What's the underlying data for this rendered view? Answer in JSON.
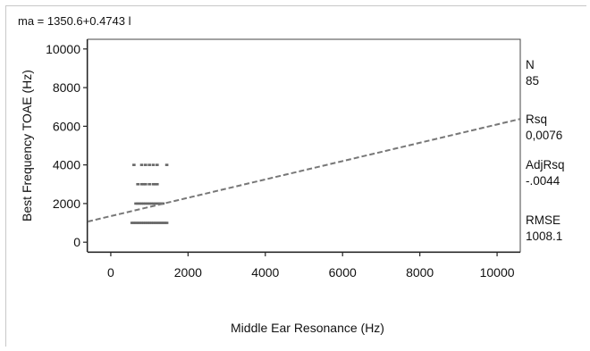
{
  "chart_data": {
    "type": "scatter",
    "equation": "ma = 1350.6+0.4743 l",
    "xlabel": "Middle Ear Resonance (Hz)",
    "ylabel": "Best Frequency TOAE (Hz)",
    "xlim": [
      -600,
      10600
    ],
    "ylim": [
      -500,
      10500
    ],
    "x_ticks": [
      "0",
      "2000",
      "4000",
      "6000",
      "8000",
      "10000"
    ],
    "y_ticks": [
      "0",
      "2000",
      "4000",
      "6000",
      "8000",
      "10000"
    ],
    "grid": false,
    "fit_line": {
      "intercept": 1350.6,
      "slope": 0.4743,
      "style": "dashed"
    },
    "point_rows": [
      {
        "y": 4000,
        "x": [
          600,
          800,
          900,
          1000,
          1100,
          1200,
          1450
        ]
      },
      {
        "y": 3000,
        "x": [
          700,
          800,
          850,
          900,
          1000,
          1100,
          1150,
          1200
        ]
      },
      {
        "y": 2000,
        "x": [
          650,
          700,
          750,
          800,
          850,
          900,
          950,
          1000,
          1050,
          1100,
          1150,
          1200,
          1250,
          1300,
          1350
        ]
      },
      {
        "y": 1000,
        "x": [
          550,
          600,
          650,
          700,
          750,
          800,
          850,
          900,
          950,
          1000,
          1050,
          1100,
          1150,
          1200,
          1250,
          1300,
          1350,
          1400,
          1450
        ]
      }
    ],
    "stats": [
      {
        "label": "N",
        "value": "85"
      },
      {
        "label": "Rsq",
        "value": "0,0076"
      },
      {
        "label": "AdjRsq",
        "value": "-.0044"
      },
      {
        "label": "RMSE",
        "value": "1008.1"
      }
    ]
  },
  "colors": {
    "line": "#777777",
    "points": "#666666",
    "axis": "#222222",
    "frame": "#c8c8c8"
  }
}
